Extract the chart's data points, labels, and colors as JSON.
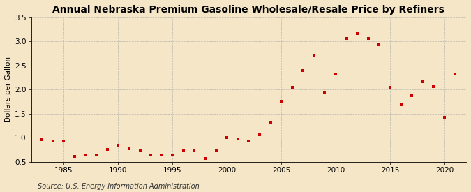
{
  "title": "Annual Nebraska Premium Gasoline Wholesale/Resale Price by Refiners",
  "ylabel": "Dollars per Gallon",
  "source": "Source: U.S. Energy Information Administration",
  "background_color": "#f5e6c8",
  "plot_bg_color": "#f5e6c8",
  "years": [
    1983,
    1984,
    1985,
    1986,
    1987,
    1988,
    1989,
    1990,
    1991,
    1992,
    1993,
    1994,
    1995,
    1996,
    1997,
    1998,
    1999,
    2000,
    2001,
    2002,
    2003,
    2004,
    2005,
    2006,
    2007,
    2008,
    2009,
    2010,
    2011,
    2012,
    2013,
    2014,
    2015,
    2016,
    2017,
    2018,
    2019,
    2020,
    2021
  ],
  "values": [
    0.96,
    0.93,
    0.93,
    0.62,
    0.65,
    0.65,
    0.76,
    0.85,
    0.77,
    0.75,
    0.65,
    0.65,
    0.65,
    0.75,
    0.75,
    0.57,
    0.75,
    1.01,
    0.97,
    0.93,
    1.07,
    1.32,
    1.76,
    2.05,
    2.4,
    2.7,
    1.95,
    2.33,
    3.07,
    3.16,
    3.07,
    2.93,
    2.05,
    1.68,
    1.88,
    2.17,
    2.06,
    1.43,
    2.33
  ],
  "marker_color": "#cc0000",
  "marker_size": 3.5,
  "xlim": [
    1982,
    2022
  ],
  "ylim": [
    0.5,
    3.5
  ],
  "yticks": [
    0.5,
    1.0,
    1.5,
    2.0,
    2.5,
    3.0,
    3.5
  ],
  "xticks": [
    1985,
    1990,
    1995,
    2000,
    2005,
    2010,
    2015,
    2020
  ],
  "grid_color": "#aaaaaa",
  "title_fontsize": 10,
  "label_fontsize": 7.5,
  "tick_fontsize": 7.5,
  "source_fontsize": 7
}
